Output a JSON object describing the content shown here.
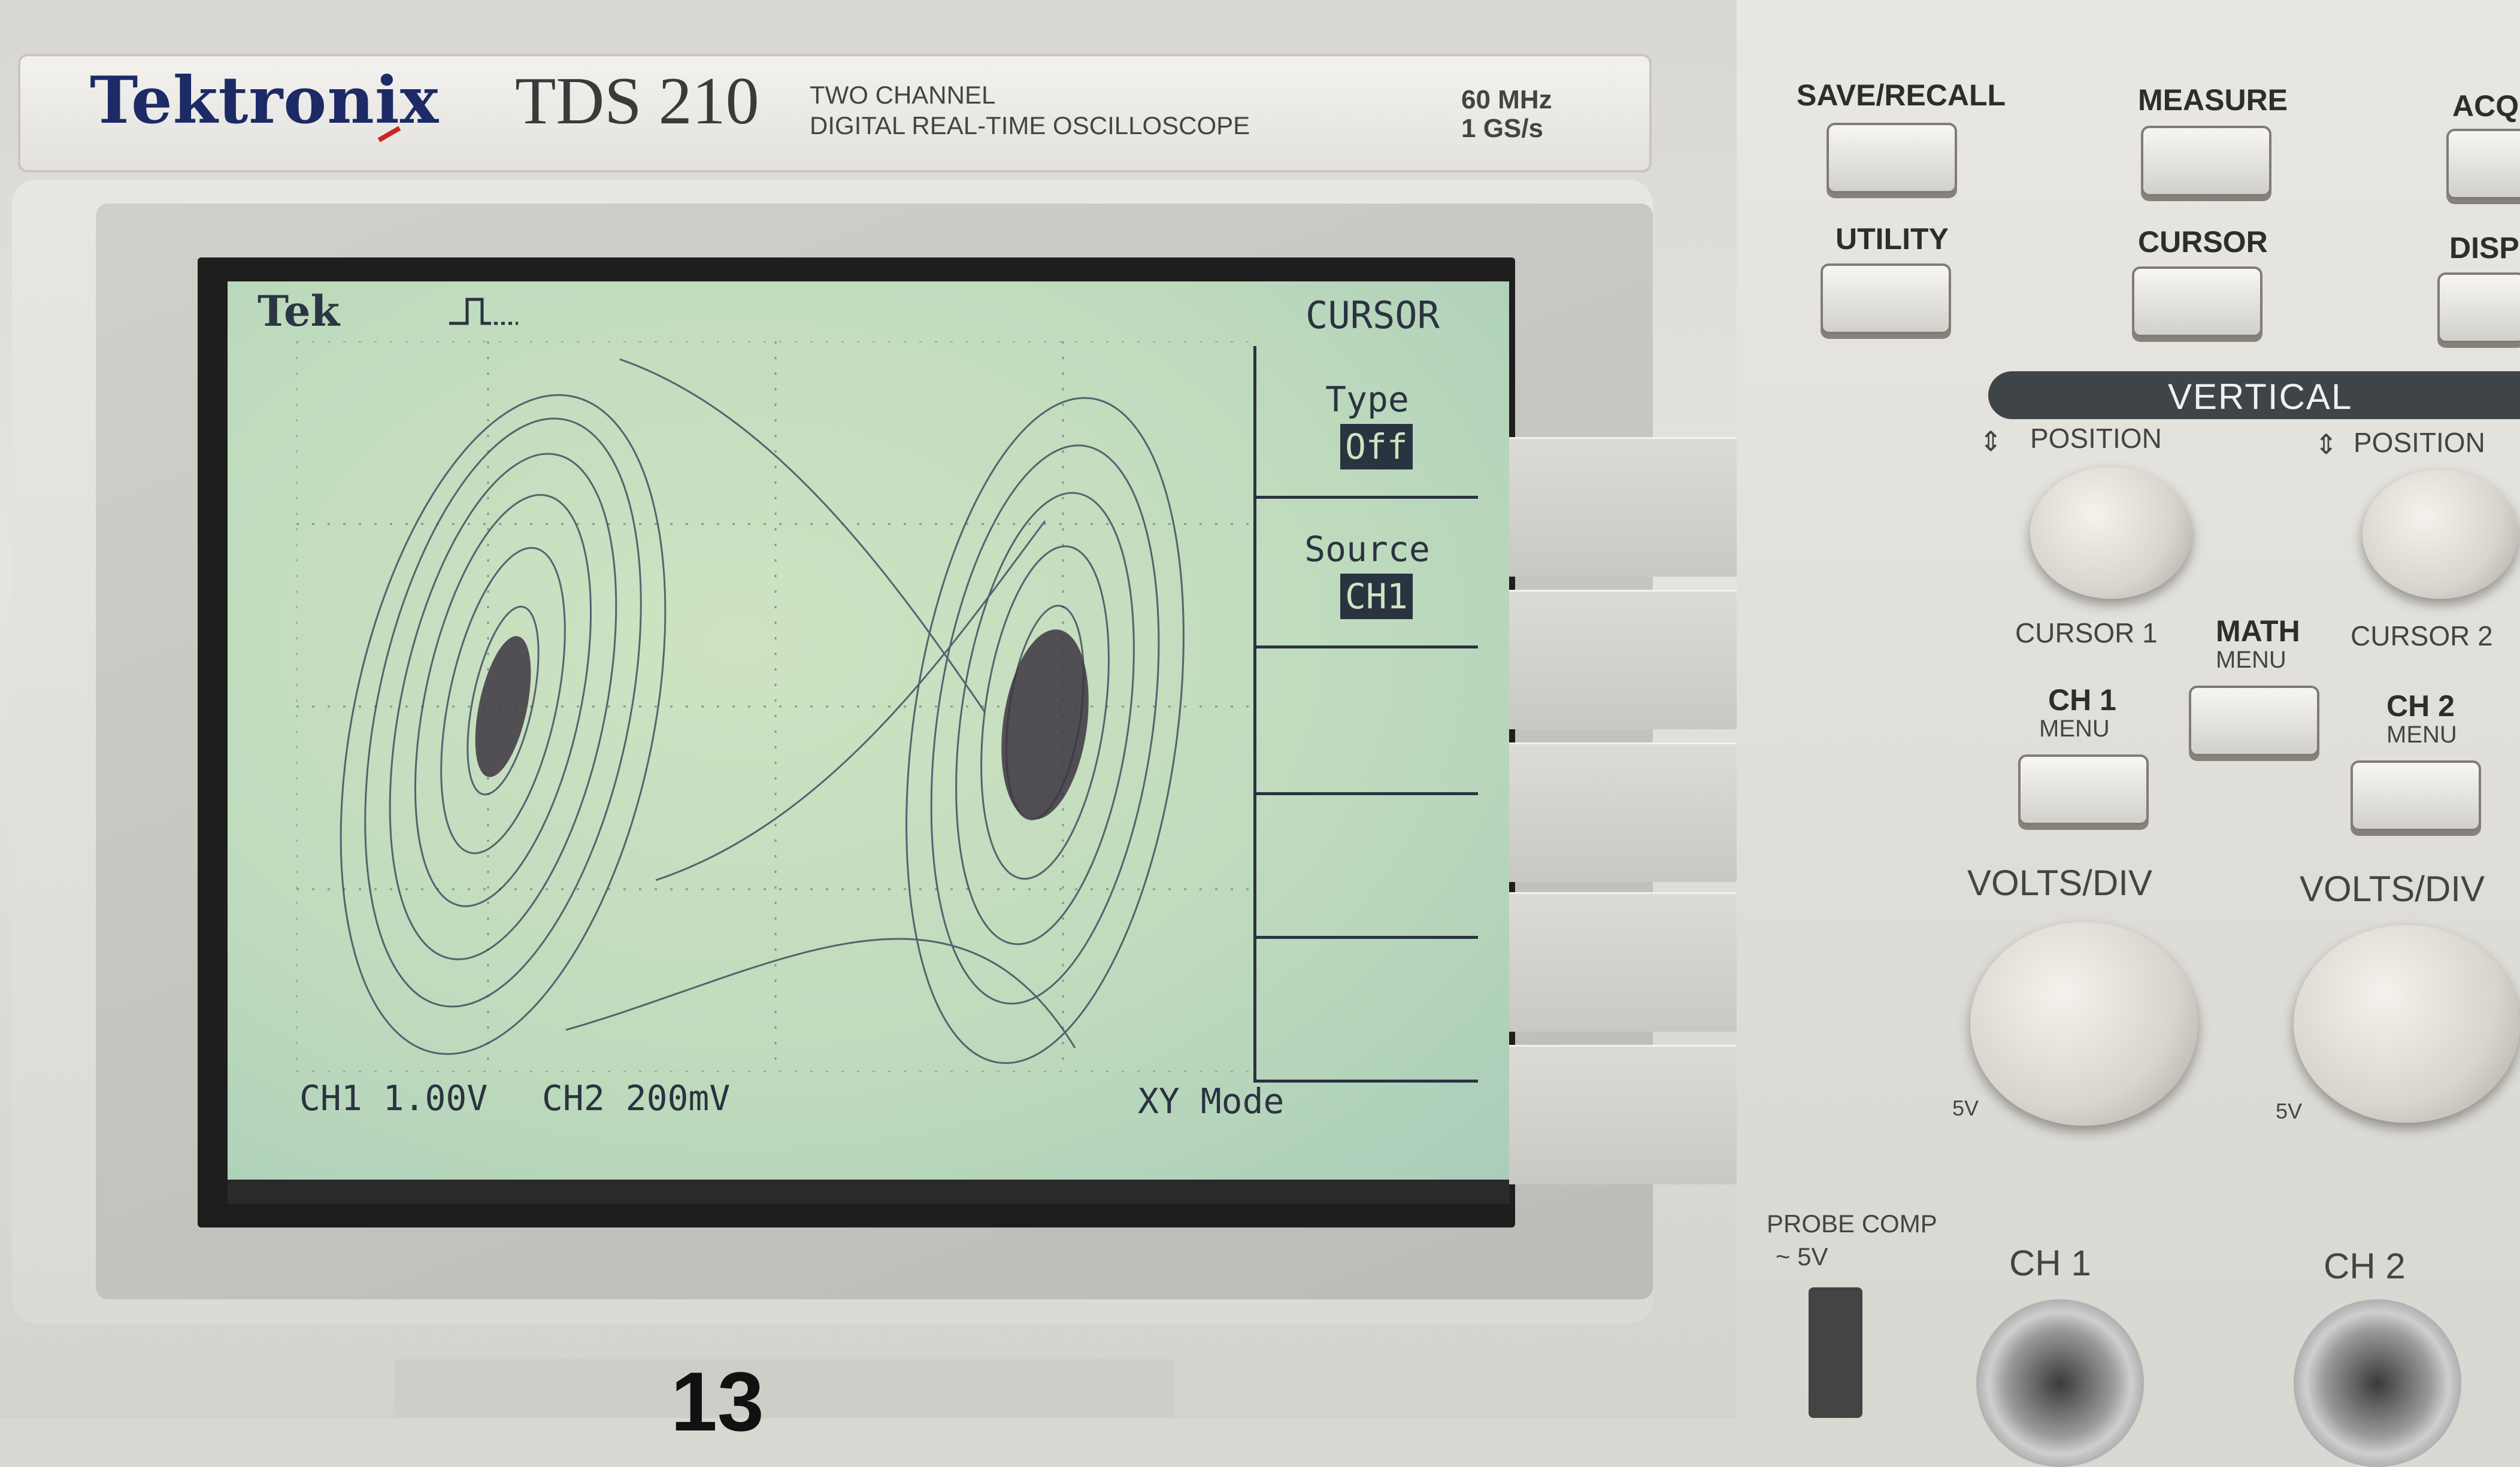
{
  "nameplate": {
    "brand": "Tektronix",
    "model": "TDS 210",
    "desc_line1": "TWO CHANNEL",
    "desc_line2": "DIGITAL REAL-TIME OSCILLOSCOPE",
    "bandwidth": "60 MHz",
    "sample_rate": "1 GS/s"
  },
  "screen": {
    "logo": "Tek",
    "menu_title": "CURSOR",
    "menu": [
      {
        "label": "Type",
        "value": "Off"
      },
      {
        "label": "Source",
        "value": "CH1"
      }
    ],
    "ch1_scale": "CH1  1.00V",
    "ch2_scale": "CH2  200mV",
    "mode": "XY Mode"
  },
  "panel": {
    "save_recall": "SAVE/RECALL",
    "measure": "MEASURE",
    "acquire": "ACQU",
    "utility": "UTILITY",
    "cursor": "CURSOR",
    "display": "DISPL",
    "vertical": "VERTICAL",
    "position1": "POSITION",
    "position2": "POSITION",
    "cursor1": "CURSOR 1",
    "cursor2": "CURSOR 2",
    "math": "MATH",
    "math_menu": "MENU",
    "ch1": "CH 1",
    "ch1_menu": "MENU",
    "ch2": "CH 2",
    "ch2_menu": "MENU",
    "volts_div1": "VOLTS/DIV",
    "volts_div2": "VOLTS/DIV",
    "fivev1": "5V",
    "fivev2": "5V",
    "probe_comp": "PROBE COMP",
    "probe_comp_val": "~ 5V",
    "ch1_input": "CH 1",
    "ch2_input": "CH 2"
  },
  "tag": {
    "number": "13"
  }
}
